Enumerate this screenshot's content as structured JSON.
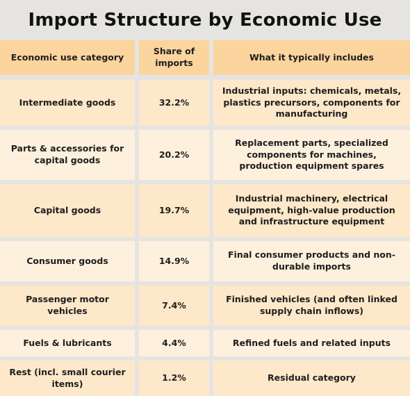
{
  "chart_data": {
    "type": "table",
    "title": "Import Structure by Economic Use",
    "columns": [
      "Economic use category",
      "Share of imports",
      "What it typically includes"
    ],
    "rows": [
      [
        "Intermediate goods",
        "32.2%",
        "Industrial inputs: chemicals, metals, plastics precursors, components for manufacturing"
      ],
      [
        "Parts & accessories for capital goods",
        "20.2%",
        "Replacement parts, specialized components for machines, production equipment spares"
      ],
      [
        "Capital goods",
        "19.7%",
        "Industrial machinery, electrical equipment, high-value production and infrastructure equipment"
      ],
      [
        "Consumer goods",
        "14.9%",
        "Final consumer products and non-durable imports"
      ],
      [
        "Passenger motor vehicles",
        "7.4%",
        "Finished vehicles (and often linked supply chain inflows)"
      ],
      [
        "Fuels & lubricants",
        "4.4%",
        "Refined fuels and related inputs"
      ],
      [
        "Rest (incl. small courier items)",
        "1.2%",
        "Residual category"
      ]
    ]
  },
  "colors": {
    "background": "#e6e4e1",
    "header_fill": "#fcd49e",
    "row_fill_a": "#fde8c9",
    "row_fill_b": "#fdf1de",
    "text": "#1e1e1e"
  }
}
